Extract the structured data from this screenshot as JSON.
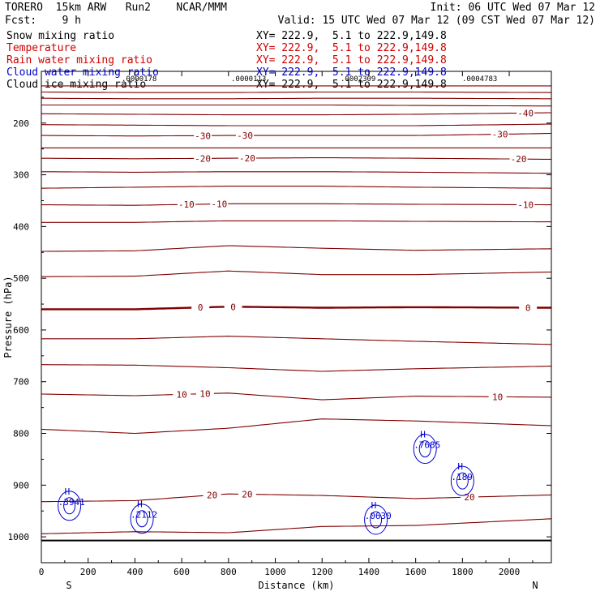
{
  "header": {
    "model": "TORERO  15km ARW   Run2    NCAR/MMM",
    "init": "Init: 06 UTC Wed 07 Mar 12",
    "fcst": "Fcst:    9 h",
    "valid": "Valid: 15 UTC Wed 07 Mar 12 (09 CST Wed 07 Mar 12)"
  },
  "fields": [
    {
      "name": "Snow mixing ratio",
      "xy": "XY= 222.9,  5.1 to 222.9,149.8",
      "color": "#000000"
    },
    {
      "name": "Temperature",
      "xy": "XY= 222.9,  5.1 to 222.9,149.8",
      "color": "#cc0000"
    },
    {
      "name": "Rain water mixing ratio",
      "xy": "XY= 222.9,  5.1 to 222.9,149.8",
      "color": "#cc0000"
    },
    {
      "name": "Cloud water mixing ratio",
      "xy": "XY= 222.9,  5.1 to 222.9,149.8",
      "color": "#0000cc"
    },
    {
      "name": "Cloud ice mixing ratio",
      "xy": "XY= 222.9,  5.1 to 222.9,149.8",
      "color": "#000000"
    }
  ],
  "chart_data": {
    "type": "line",
    "title": "",
    "xlabel": "Distance (km)",
    "ylabel": "Pressure (hPa)",
    "xlim": [
      0,
      2180
    ],
    "ylim": [
      1050,
      100
    ],
    "x_ticks": [
      0,
      200,
      400,
      600,
      800,
      1000,
      1200,
      1400,
      1600,
      1800,
      2000
    ],
    "y_ticks": [
      200,
      300,
      400,
      500,
      600,
      700,
      800,
      900,
      1000
    ],
    "left_end_label": "S",
    "right_end_label": "N",
    "colors": {
      "temperature": "#800000",
      "cloud_water": "#0000cc",
      "ground": "#000000"
    },
    "temperature_contours": [
      {
        "p": [
          128,
          128,
          128,
          128,
          128,
          128
        ],
        "label": ""
      },
      {
        "p": [
          140,
          141,
          141,
          140,
          140,
          141
        ],
        "label": ""
      },
      {
        "p": [
          152,
          153,
          153,
          152,
          152,
          153
        ],
        "label": ""
      },
      {
        "p": [
          165,
          165,
          165,
          165,
          166,
          167
        ],
        "label": ""
      },
      {
        "p": [
          182,
          183,
          184,
          184,
          183,
          180
        ],
        "label": "-40",
        "label_x": [
          2070
        ]
      },
      {
        "p": [
          203,
          204,
          205,
          205,
          205,
          202
        ],
        "label": ""
      },
      {
        "p": [
          224,
          225,
          224,
          224,
          224,
          220
        ],
        "label": "-30",
        "label_x": [
          690,
          870,
          1960
        ]
      },
      {
        "p": [
          248,
          248,
          248,
          248,
          248,
          248
        ],
        "label": ""
      },
      {
        "p": [
          268,
          269,
          268,
          267,
          268,
          270
        ],
        "label": "-20",
        "label_x": [
          690,
          880,
          2040
        ]
      },
      {
        "p": [
          294,
          295,
          294,
          294,
          295,
          297
        ],
        "label": ""
      },
      {
        "p": [
          326,
          324,
          322,
          322,
          324,
          326
        ],
        "label": ""
      },
      {
        "p": [
          358,
          359,
          356,
          356,
          357,
          358
        ],
        "label": "-10",
        "label_x": [
          620,
          760,
          2070
        ]
      },
      {
        "p": [
          392,
          392,
          389,
          389,
          390,
          391
        ],
        "label": ""
      },
      {
        "p": [
          448,
          447,
          437,
          442,
          446,
          443
        ],
        "label": ""
      },
      {
        "p": [
          497,
          496,
          486,
          493,
          493,
          488
        ],
        "label": ""
      },
      {
        "p": [
          560,
          560,
          555,
          557,
          556,
          557
        ],
        "label": "0",
        "label_x": [
          680,
          820,
          2080
        ],
        "bold": true
      },
      {
        "p": [
          617,
          617,
          612,
          617,
          622,
          628
        ],
        "label": ""
      },
      {
        "p": [
          667,
          668,
          673,
          680,
          675,
          670
        ],
        "label": ""
      },
      {
        "p": [
          724,
          727,
          722,
          735,
          728,
          730
        ],
        "label": "10",
        "label_x": [
          600,
          700,
          1950
        ]
      },
      {
        "p": [
          792,
          800,
          790,
          772,
          776,
          785
        ],
        "label": ""
      },
      {
        "p": [
          932,
          930,
          917,
          920,
          926,
          919
        ],
        "label": "20",
        "label_x": [
          730,
          880,
          1830
        ]
      },
      {
        "p": [
          994,
          990,
          992,
          980,
          978,
          965
        ],
        "label": ""
      }
    ],
    "temperature_x": [
      0,
      400,
      800,
      1200,
      1600,
      2180
    ],
    "ground_pressure": 1007,
    "cloud_water_maxima": [
      {
        "x": 120,
        "p": 918,
        "value": ".3941"
      },
      {
        "x": 430,
        "p": 943,
        "value": ".2112"
      },
      {
        "x": 1430,
        "p": 945,
        "value": ".0630"
      },
      {
        "x": 1640,
        "p": 808,
        "value": ".7685"
      },
      {
        "x": 1800,
        "p": 870,
        "value": ".189"
      }
    ],
    "top_values": [
      ".0000178",
      ".0000113",
      ".0002309",
      ".0004783"
    ]
  }
}
